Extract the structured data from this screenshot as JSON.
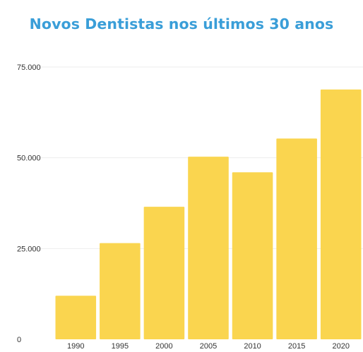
{
  "colors": {
    "title": "#3a9ed8",
    "bar": "#fad54f",
    "grid": "#ededed",
    "text": "#333333"
  },
  "chart_data": {
    "type": "bar",
    "title": "Novos Dentistas nos últimos 30 anos",
    "xlabel": "",
    "ylabel": "",
    "categories": [
      "1990",
      "1995",
      "2000",
      "2005",
      "2010",
      "2015",
      "2020"
    ],
    "values": [
      12000,
      26500,
      36500,
      50300,
      46000,
      55300,
      68800
    ],
    "ylim": [
      0,
      75000
    ],
    "yticks": [
      0,
      25000,
      50000,
      75000
    ],
    "ytick_labels": [
      "0",
      "25.000",
      "50.000",
      "75.000"
    ],
    "grid": true,
    "legend": "none"
  }
}
